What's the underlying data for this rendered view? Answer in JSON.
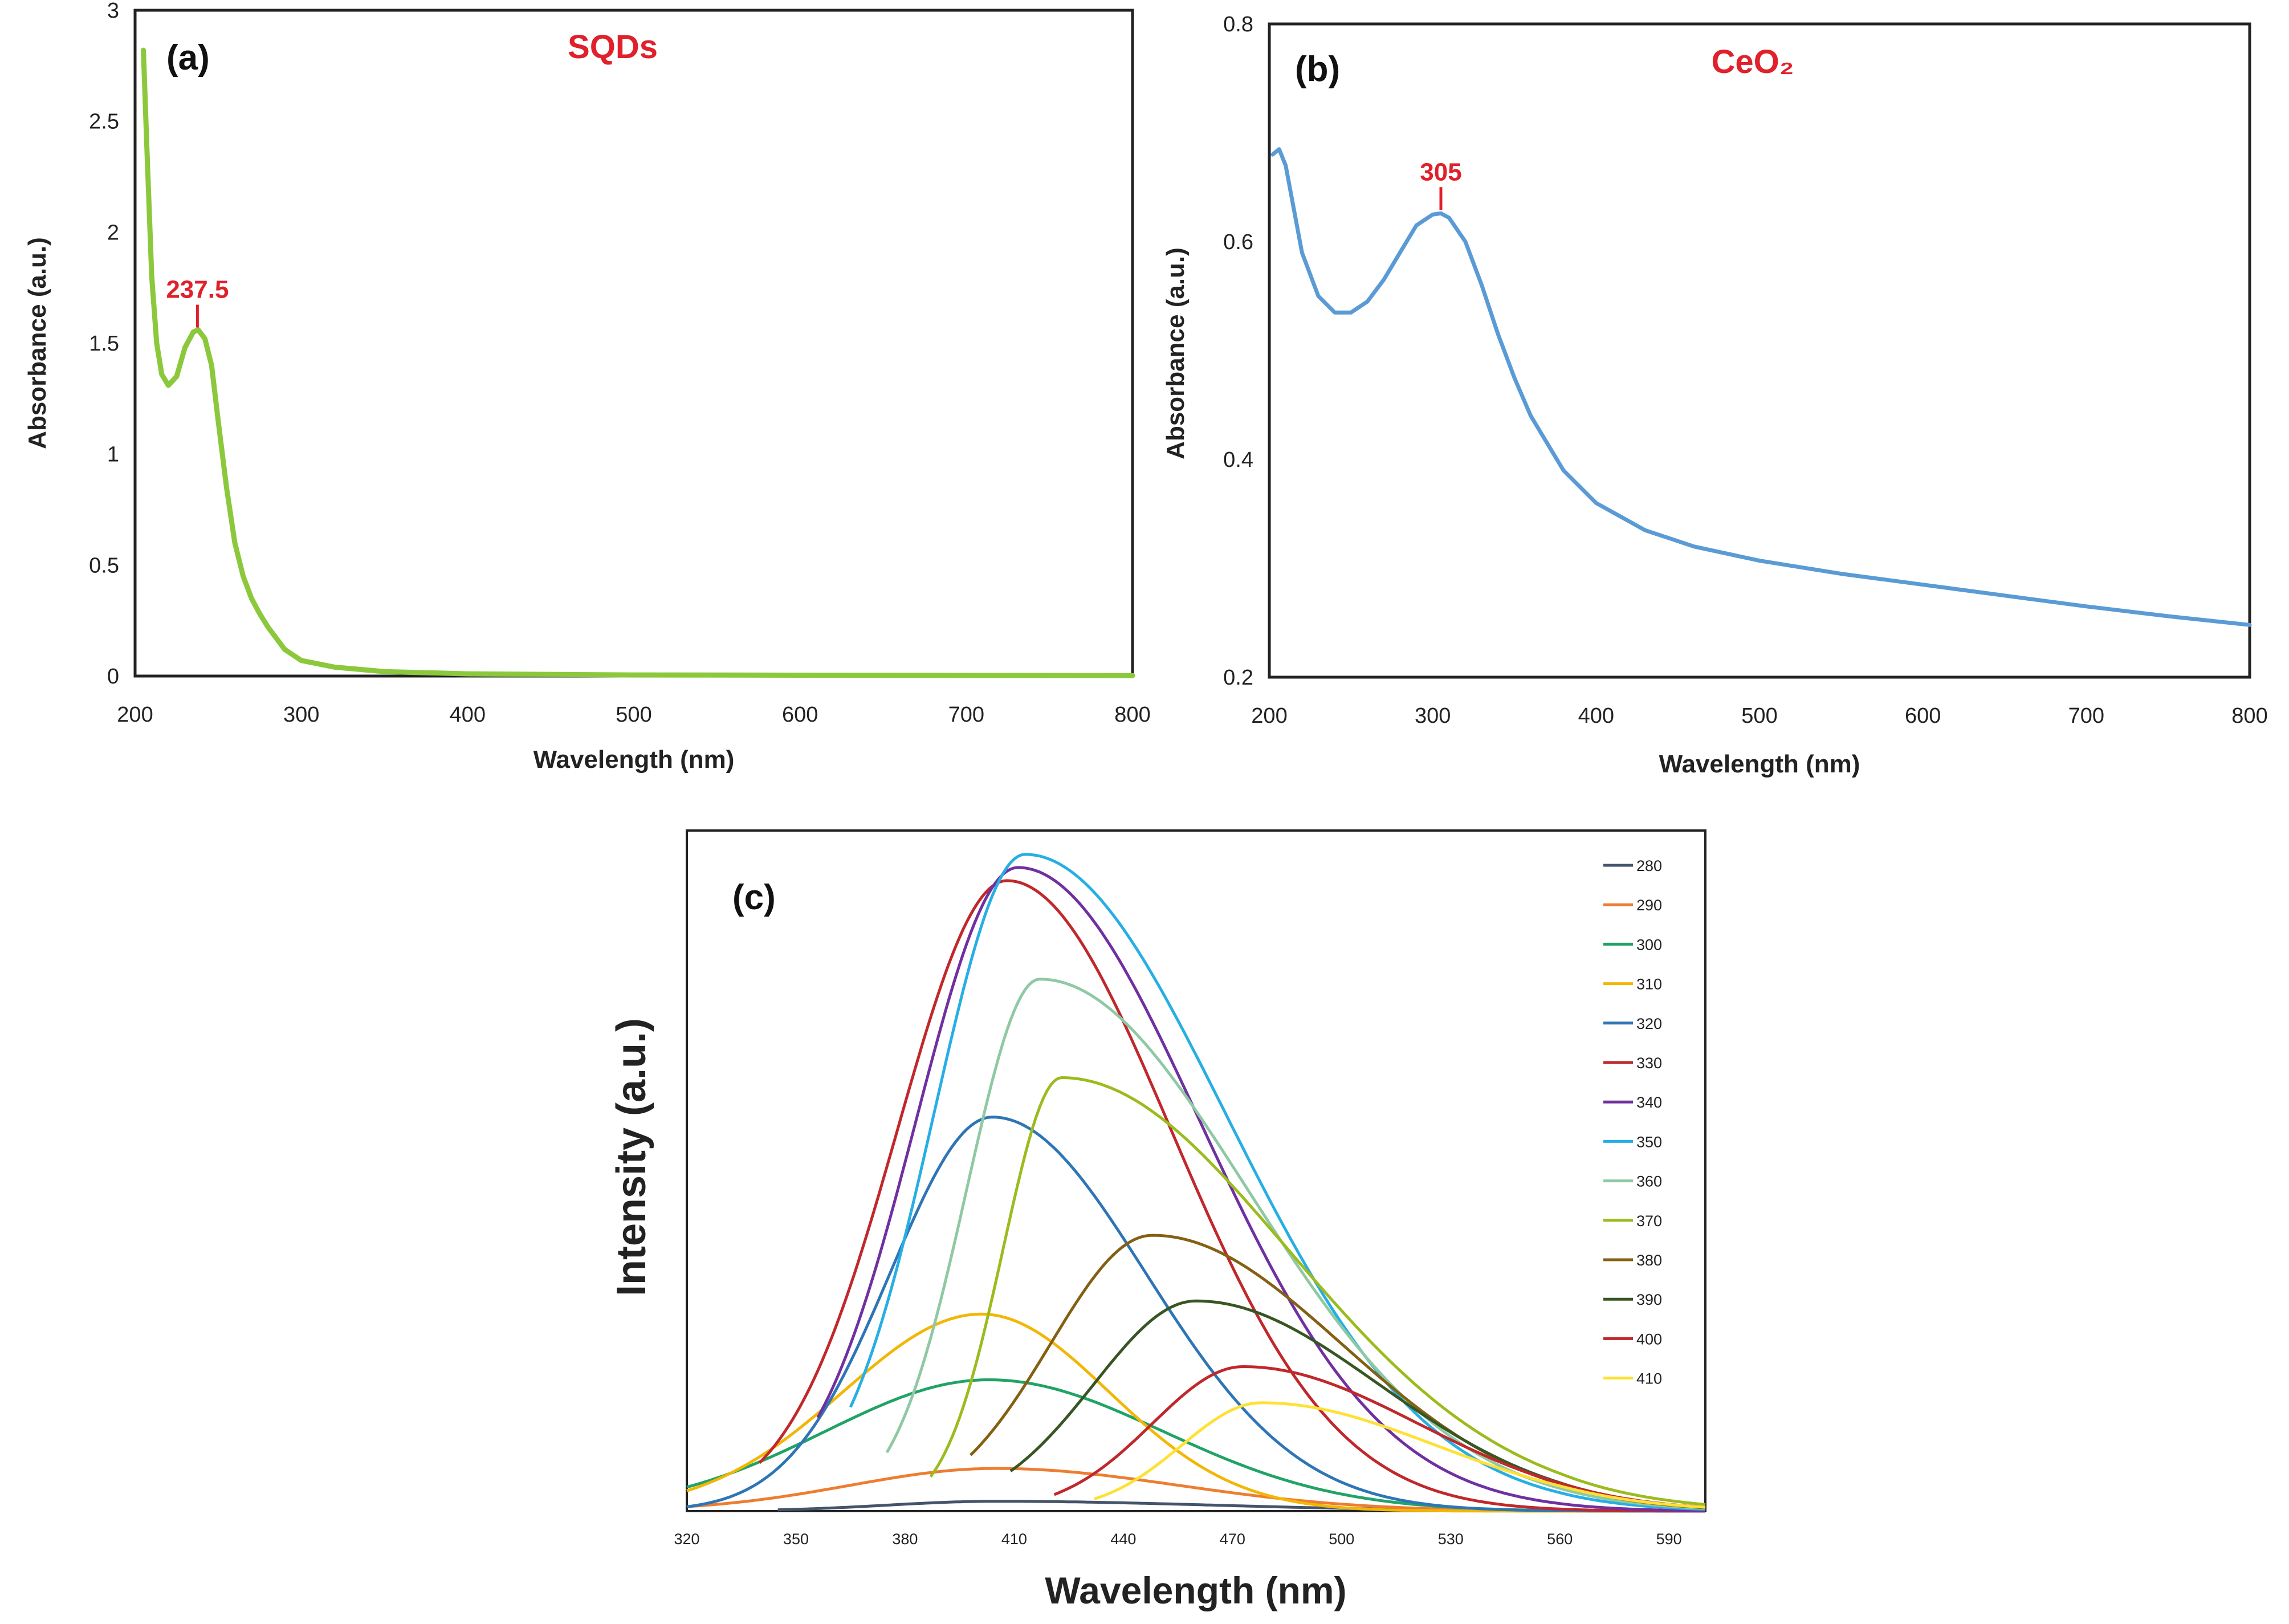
{
  "chart_data": [
    {
      "type": "line",
      "panel_label": "(a)",
      "title": "SQDs",
      "xlabel": "Wavelength (nm)",
      "ylabel": "Absorbance (a.u.)",
      "xlim": [
        200,
        800
      ],
      "ylim": [
        0,
        3
      ],
      "xticks": [
        200,
        300,
        400,
        500,
        600,
        700,
        800
      ],
      "yticks": [
        0,
        0.5,
        1,
        1.5,
        2,
        2.5,
        3
      ],
      "color": "#8cc83c",
      "annotation": {
        "label": "237.5",
        "x": 237.5,
        "y": 1.55
      },
      "series": [
        {
          "x": [
            205,
            207,
            210,
            213,
            216,
            220,
            225,
            230,
            235,
            238,
            242,
            246,
            250,
            255,
            260,
            265,
            270,
            275,
            280,
            290,
            300,
            320,
            350,
            400,
            500,
            800
          ],
          "values": [
            2.82,
            2.4,
            1.8,
            1.5,
            1.36,
            1.31,
            1.35,
            1.48,
            1.55,
            1.56,
            1.52,
            1.4,
            1.15,
            0.85,
            0.6,
            0.45,
            0.35,
            0.28,
            0.22,
            0.12,
            0.07,
            0.04,
            0.02,
            0.01,
            0.005,
            0.002
          ]
        }
      ]
    },
    {
      "type": "line",
      "panel_label": "(b)",
      "title": "CeO₂",
      "xlabel": "Wavelength (nm)",
      "ylabel": "Absorbance (a.u.)",
      "xlim": [
        200,
        800
      ],
      "ylim": [
        0.2,
        0.8
      ],
      "xticks": [
        200,
        300,
        400,
        500,
        600,
        700,
        800
      ],
      "yticks": [
        0.2,
        0.4,
        0.6,
        0.8
      ],
      "color": "#5b9bd5",
      "annotation": {
        "label": "305",
        "x": 305,
        "y": 0.625
      },
      "series": [
        {
          "x": [
            202,
            206,
            210,
            215,
            220,
            230,
            240,
            250,
            260,
            270,
            280,
            290,
            300,
            305,
            310,
            320,
            330,
            340,
            350,
            360,
            380,
            400,
            430,
            460,
            500,
            550,
            600,
            650,
            700,
            750,
            800
          ],
          "values": [
            0.68,
            0.685,
            0.67,
            0.63,
            0.59,
            0.55,
            0.535,
            0.535,
            0.545,
            0.565,
            0.59,
            0.615,
            0.625,
            0.626,
            0.622,
            0.6,
            0.56,
            0.515,
            0.475,
            0.44,
            0.39,
            0.36,
            0.335,
            0.32,
            0.307,
            0.295,
            0.285,
            0.275,
            0.265,
            0.256,
            0.248
          ]
        }
      ]
    },
    {
      "type": "line",
      "panel_label": "(c)",
      "xlabel": "Wavelength (nm)",
      "ylabel": "Intensity (a.u.)",
      "xlim": [
        320,
        600
      ],
      "ylim": [
        0,
        100
      ],
      "xticks": [
        320,
        350,
        380,
        410,
        440,
        470,
        500,
        530,
        560,
        590
      ],
      "legend_position": "top-right",
      "series": [
        {
          "name": "280",
          "color": "#44546a",
          "start": 345,
          "peak": 405,
          "height": 1.5,
          "wl": 30,
          "wr": 60
        },
        {
          "name": "290",
          "color": "#ed7d31",
          "start": 320,
          "peak": 405,
          "height": 6.5,
          "wl": 40,
          "wr": 50
        },
        {
          "name": "300",
          "color": "#21a366",
          "start": 320,
          "peak": 403,
          "height": 20,
          "wl": 45,
          "wr": 48
        },
        {
          "name": "310",
          "color": "#f2b705",
          "start": 320,
          "peak": 401,
          "height": 30,
          "wl": 38,
          "wr": 35
        },
        {
          "name": "320",
          "color": "#2e75b6",
          "start": 320,
          "peak": 404,
          "height": 60,
          "wl": 28,
          "wr": 42
        },
        {
          "name": "330",
          "color": "#c0282b",
          "start": 340,
          "peak": 408,
          "height": 96,
          "wl": 30,
          "wr": 45
        },
        {
          "name": "340",
          "color": "#7030a0",
          "start": 356,
          "peak": 411,
          "height": 98,
          "wl": 28,
          "wr": 50
        },
        {
          "name": "350",
          "color": "#27aee4",
          "start": 365,
          "peak": 413,
          "height": 100,
          "wl": 25,
          "wr": 55
        },
        {
          "name": "360",
          "color": "#8fc9a3",
          "start": 375,
          "peak": 417,
          "height": 81,
          "wl": 20,
          "wr": 57
        },
        {
          "name": "370",
          "color": "#9bbb1e",
          "start": 387,
          "peak": 423,
          "height": 66,
          "wl": 16,
          "wr": 62
        },
        {
          "name": "380",
          "color": "#846013",
          "start": 398,
          "peak": 448,
          "height": 42,
          "wl": 28,
          "wr": 52
        },
        {
          "name": "390",
          "color": "#375623",
          "start": 409,
          "peak": 460,
          "height": 32,
          "wl": 28,
          "wr": 50
        },
        {
          "name": "400",
          "color": "#c0282b",
          "start": 421,
          "peak": 473,
          "height": 22,
          "wl": 25,
          "wr": 48
        },
        {
          "name": "410",
          "color": "#ffe135",
          "start": 432,
          "peak": 478,
          "height": 16.5,
          "wl": 22,
          "wr": 48
        }
      ]
    }
  ]
}
